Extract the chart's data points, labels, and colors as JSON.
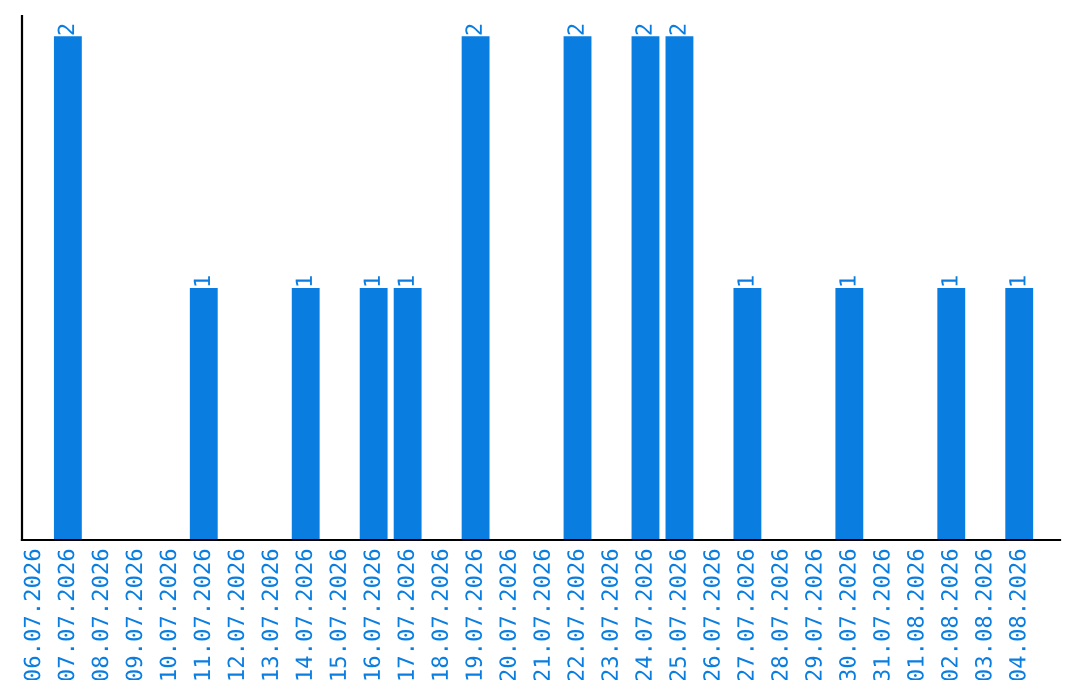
{
  "chart_data": {
    "type": "bar",
    "categories": [
      "06.07.2026",
      "07.07.2026",
      "08.07.2026",
      "09.07.2026",
      "10.07.2026",
      "11.07.2026",
      "12.07.2026",
      "13.07.2026",
      "14.07.2026",
      "15.07.2026",
      "16.07.2026",
      "17.07.2026",
      "18.07.2026",
      "19.07.2026",
      "20.07.2026",
      "21.07.2026",
      "22.07.2026",
      "23.07.2026",
      "24.07.2026",
      "25.07.2026",
      "26.07.2026",
      "27.07.2026",
      "28.07.2026",
      "29.07.2026",
      "30.07.2026",
      "31.07.2026",
      "01.08.2026",
      "02.08.2026",
      "03.08.2026",
      "04.08.2026"
    ],
    "values": [
      0,
      2,
      0,
      0,
      0,
      1,
      0,
      0,
      1,
      0,
      1,
      1,
      0,
      2,
      0,
      0,
      2,
      0,
      2,
      2,
      0,
      1,
      0,
      0,
      1,
      0,
      0,
      1,
      0,
      1
    ],
    "value_labels": [
      null,
      "2",
      null,
      null,
      null,
      "1",
      null,
      null,
      "1",
      null,
      "1",
      "1",
      null,
      "2",
      null,
      null,
      "2",
      null,
      "2",
      "2",
      null,
      "1",
      null,
      null,
      "1",
      null,
      null,
      "1",
      null,
      "1"
    ],
    "color": "#0a7ee0",
    "tick_labels": "x",
    "grid": false,
    "legend": false
  }
}
